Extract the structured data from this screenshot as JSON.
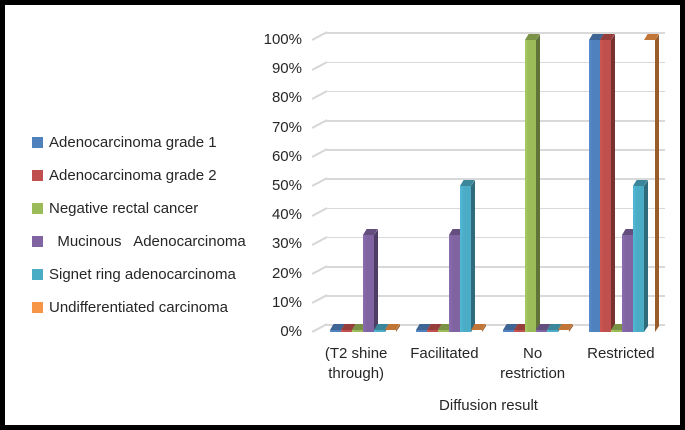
{
  "frame": {
    "border_color": "#000000",
    "background": "#ffffff"
  },
  "chart_data": {
    "type": "bar",
    "style": "3d-clustered-column",
    "title": "",
    "xlabel": "Diffusion result",
    "ylabel": "",
    "categories": [
      "(T2 shine through)",
      "Facilitated",
      "No restriction",
      "Restricted"
    ],
    "series": [
      {
        "name": "Adenocarcinoma grade 1",
        "color": "#4F81BD",
        "values": [
          0,
          0,
          0,
          100
        ]
      },
      {
        "name": "Adenocarcinoma grade 2",
        "color": "#C0504D",
        "values": [
          0,
          0,
          0,
          100
        ]
      },
      {
        "name": "Negative rectal cancer",
        "color": "#9BBB59",
        "values": [
          0,
          0,
          100,
          0
        ]
      },
      {
        "name": "  Mucinous   Adenocarcinoma",
        "color": "#8064A2",
        "values": [
          33.3,
          33.3,
          0,
          33.3
        ]
      },
      {
        "name": "Signet ring adenocarcinoma",
        "color": "#4BACC6",
        "values": [
          0,
          50,
          0,
          50
        ]
      },
      {
        "name": "Undifferentiated carcinoma",
        "color": "#F79646",
        "values": [
          0,
          0,
          0,
          100
        ]
      }
    ],
    "y_ticks": [
      "0%",
      "10%",
      "20%",
      "30%",
      "40%",
      "50%",
      "60%",
      "70%",
      "80%",
      "90%",
      "100%"
    ],
    "ylim": [
      0,
      100
    ],
    "grid": true,
    "gridline_color": "#D9D9D9",
    "legend_position": "left"
  }
}
